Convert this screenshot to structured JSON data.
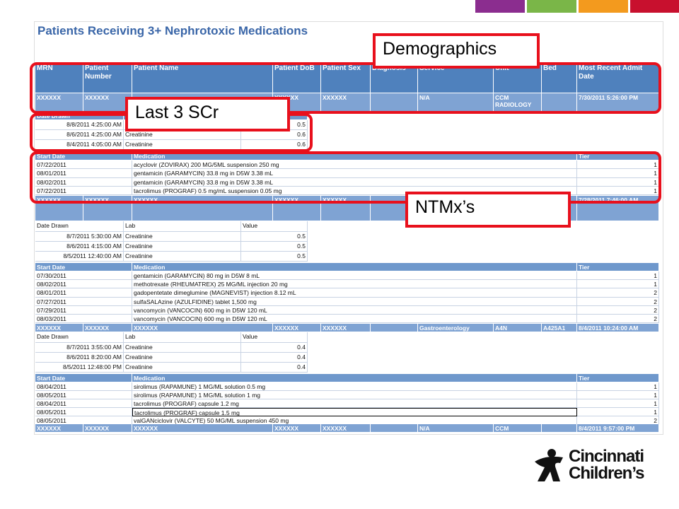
{
  "header": {
    "title": "Patients Receiving 3+ Nephrotoxic Medications",
    "columns": [
      "MRN",
      "Patient Number",
      "Patient Name",
      "Patient DoB",
      "Patient Sex",
      "Diagnosis",
      "Service",
      "Unit",
      "Bed",
      "Most Recent Admit Date"
    ]
  },
  "lab_columns": [
    "Date Drawn",
    "Lab",
    "Value"
  ],
  "med_columns": [
    "Start Date",
    "Medication",
    "Tier"
  ],
  "patients": [
    {
      "demographics": [
        "XXXXXX",
        "XXXXXX",
        null,
        "XXXXXX",
        "XXXXXX",
        null,
        "N/A",
        "CCM RADIOLOGY",
        null,
        "7/30/2011 5:26:00 PM"
      ],
      "labs": [
        [
          "8/8/2011 4:25:00 AM",
          "Creatinine",
          0.5
        ],
        [
          "8/6/2011 4:25:00 AM",
          "Creatinine",
          0.6
        ],
        [
          "8/4/2011 4:05:00 AM",
          "Creatinine",
          0.6
        ]
      ],
      "meds": [
        [
          "07/22/2011",
          "acyclovir (ZOVIRAX) 200 MG/5ML suspension 250 mg",
          1
        ],
        [
          "08/01/2011",
          "gentamicin (GARAMYCIN) 33.8 mg in D5W 3.38 mL",
          1
        ],
        [
          "08/02/2011",
          "gentamicin (GARAMYCIN) 33.8 mg in D5W 3.38 mL",
          1
        ],
        [
          "07/22/2011",
          "tacrolimus (PROGRAF) 0.5 mg/mL suspension 0.05 mg",
          1
        ]
      ]
    },
    {
      "demographics": [
        "XXXXXX",
        "XXXXXX",
        "XXXXXX",
        "XXXXXX",
        "XXXXXX",
        null,
        null,
        null,
        null,
        "7/28/2011 7:46:00 AM"
      ],
      "labs": [
        [
          "8/7/2011 5:30:00 AM",
          "Creatinine",
          0.5
        ],
        [
          "8/6/2011 4:15:00 AM",
          "Creatinine",
          0.5
        ],
        [
          "8/5/2011 12:40:00 AM",
          "Creatinine",
          0.5
        ]
      ],
      "meds": [
        [
          "07/30/2011",
          "gentamicin (GARAMYCIN) 80 mg in D5W 8 mL",
          1
        ],
        [
          "08/02/2011",
          "methotrexate (RHEUMATREX) 25 MG/ML injection 20 mg",
          1
        ],
        [
          "08/01/2011",
          "gadopentetate dimeglumine (MAGNEVIST) injection 8.12 mL",
          2
        ],
        [
          "07/27/2011",
          "sulfaSALAzine (AZULFIDINE) tablet 1,500 mg",
          2
        ],
        [
          "07/29/2011",
          "vancomycin (VANCOCIN) 600 mg in D5W 120 mL",
          2
        ],
        [
          "08/03/2011",
          "vancomycin (VANCOCIN) 600 mg in D5W 120 mL",
          2
        ]
      ]
    },
    {
      "demographics": [
        "XXXXXX",
        "XXXXXX",
        "XXXXXX",
        "XXXXXX",
        "XXXXXX",
        null,
        "Gastroenterology",
        "A4N",
        "A425A1",
        "8/4/2011 10:24:00 AM"
      ],
      "labs": [
        [
          "8/7/2011 3:55:00 AM",
          "Creatinine",
          0.4
        ],
        [
          "8/6/2011 8:20:00 AM",
          "Creatinine",
          0.4
        ],
        [
          "8/5/2011 12:48:00 PM",
          "Creatinine",
          0.4
        ]
      ],
      "meds": [
        [
          "08/04/2011",
          "sirolimus (RAPAMUNE) 1 MG/ML solution 0.5 mg",
          1
        ],
        [
          "08/05/2011",
          "sirolimus (RAPAMUNE) 1 MG/ML solution 1 mg",
          1
        ],
        [
          "08/04/2011",
          "tacrolimus (PROGRAF) capsule 1.2 mg",
          1
        ],
        [
          "08/05/2011",
          "tacrolimus (PROGRAF) capsule 1.5 mg",
          1
        ],
        [
          "08/05/2011",
          "valGANciclovir (VALCYTE) 50 MG/ML suspension 450 mg",
          2
        ]
      ]
    },
    {
      "demographics": [
        "XXXXXX",
        "XXXXXX",
        "XXXXXX",
        "XXXXXX",
        "XXXXXX",
        null,
        "N/A",
        "CCM",
        null,
        "8/4/2011 9:57:00 PM"
      ]
    }
  ],
  "callouts": [
    "Demographics",
    "Last 3 SCr",
    "NTMx’s"
  ],
  "logo": {
    "line1": "Cincinnati",
    "line2": "Children’s"
  }
}
